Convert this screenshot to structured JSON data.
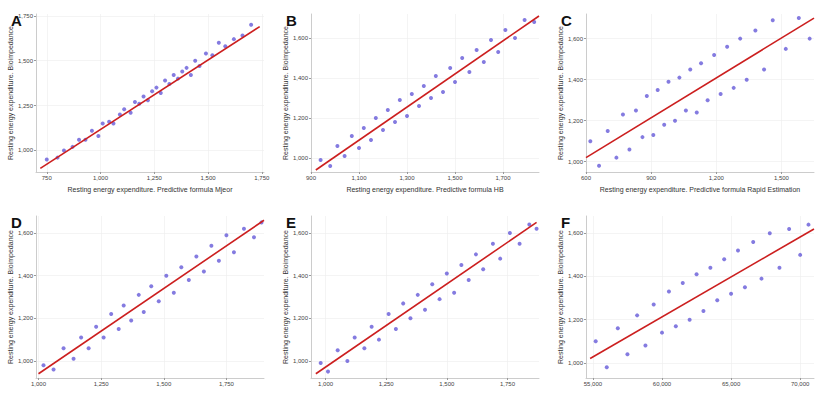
{
  "chart_data": [
    {
      "type": "scatter",
      "title": "A",
      "x_label": "Resting energy expenditure. Predictive formula Mjeor",
      "y_label": "Resting energy expenditure. Bioimpedance",
      "xlim": [
        700,
        1760
      ],
      "xticks": [
        750,
        1000,
        1250,
        1500,
        1750
      ],
      "ylim": [
        880,
        1760
      ],
      "yticks": [
        1000,
        1250,
        1500,
        1750
      ],
      "grid": true,
      "series": [
        {
          "type": "scatter",
          "color": "#5b4fd6",
          "x": [
            750,
            800,
            830,
            870,
            900,
            930,
            960,
            990,
            1010,
            1040,
            1060,
            1090,
            1110,
            1140,
            1160,
            1180,
            1200,
            1220,
            1240,
            1260,
            1280,
            1300,
            1320,
            1340,
            1360,
            1380,
            1400,
            1420,
            1440,
            1460,
            1490,
            1520,
            1550,
            1580,
            1620,
            1660,
            1700
          ],
          "values": [
            950,
            960,
            1000,
            1020,
            1060,
            1060,
            1110,
            1080,
            1150,
            1160,
            1150,
            1200,
            1230,
            1210,
            1270,
            1260,
            1300,
            1280,
            1330,
            1350,
            1320,
            1390,
            1370,
            1420,
            1400,
            1440,
            1460,
            1420,
            1500,
            1470,
            1540,
            1530,
            1600,
            1580,
            1620,
            1640,
            1700
          ]
        },
        {
          "type": "line",
          "color": "#cc1f1f",
          "x": [
            720,
            1740
          ],
          "values": [
            900,
            1690
          ]
        }
      ]
    },
    {
      "type": "scatter",
      "title": "B",
      "x_label": "Resting energy expenditure. Predictive formula HB",
      "y_label": "Resting energy expenditure. Bioimpedance",
      "xlim": [
        900,
        1850
      ],
      "xticks": [
        900,
        1100,
        1300,
        1500,
        1700
      ],
      "ylim": [
        930,
        1720
      ],
      "yticks": [
        1000,
        1200,
        1400,
        1600
      ],
      "grid": true,
      "series": [
        {
          "type": "scatter",
          "color": "#5b4fd6",
          "x": [
            940,
            980,
            1010,
            1040,
            1070,
            1100,
            1120,
            1150,
            1170,
            1200,
            1220,
            1250,
            1270,
            1300,
            1320,
            1350,
            1370,
            1400,
            1420,
            1450,
            1480,
            1500,
            1530,
            1560,
            1590,
            1620,
            1650,
            1680,
            1710,
            1750,
            1790,
            1830
          ],
          "values": [
            990,
            960,
            1060,
            1010,
            1110,
            1050,
            1150,
            1090,
            1200,
            1140,
            1240,
            1180,
            1290,
            1210,
            1320,
            1260,
            1360,
            1300,
            1410,
            1330,
            1450,
            1380,
            1500,
            1430,
            1540,
            1480,
            1590,
            1530,
            1640,
            1600,
            1690,
            1680
          ]
        },
        {
          "type": "line",
          "color": "#cc1f1f",
          "x": [
            920,
            1850
          ],
          "values": [
            940,
            1710
          ]
        }
      ]
    },
    {
      "type": "scatter",
      "title": "C",
      "x_label": "Resting energy expenditure. Predictive formula Rapid Estimation",
      "y_label": "Resting energy expenditure. Bioimpedance",
      "xlim": [
        600,
        1650
      ],
      "xticks": [
        600,
        900,
        1200,
        1500
      ],
      "ylim": [
        950,
        1720
      ],
      "yticks": [
        1000,
        1200,
        1400,
        1600
      ],
      "grid": true,
      "series": [
        {
          "type": "scatter",
          "color": "#5b4fd6",
          "x": [
            620,
            660,
            700,
            740,
            770,
            800,
            830,
            860,
            880,
            910,
            930,
            960,
            980,
            1010,
            1030,
            1060,
            1080,
            1110,
            1130,
            1160,
            1190,
            1220,
            1250,
            1280,
            1310,
            1340,
            1380,
            1420,
            1460,
            1520,
            1580,
            1630
          ],
          "values": [
            1100,
            980,
            1150,
            1020,
            1230,
            1060,
            1250,
            1120,
            1320,
            1130,
            1350,
            1180,
            1390,
            1200,
            1410,
            1250,
            1450,
            1240,
            1480,
            1300,
            1520,
            1330,
            1560,
            1360,
            1600,
            1400,
            1640,
            1450,
            1690,
            1550,
            1700,
            1600
          ]
        },
        {
          "type": "line",
          "color": "#cc1f1f",
          "x": [
            600,
            1650
          ],
          "values": [
            1020,
            1700
          ]
        }
      ]
    },
    {
      "type": "scatter",
      "title": "D",
      "y_label": "Resting energy expenditure. Bioimpedance",
      "xlim": [
        990,
        1900
      ],
      "xticks": [
        1000,
        1250,
        1500,
        1750
      ],
      "ylim": [
        920,
        1680
      ],
      "yticks": [
        1000,
        1200,
        1400,
        1600
      ],
      "grid": true,
      "series": [
        {
          "type": "scatter",
          "color": "#5b4fd6",
          "x": [
            1020,
            1060,
            1100,
            1140,
            1170,
            1200,
            1230,
            1260,
            1290,
            1320,
            1340,
            1370,
            1400,
            1420,
            1450,
            1480,
            1510,
            1540,
            1570,
            1600,
            1630,
            1660,
            1690,
            1720,
            1750,
            1780,
            1820,
            1860,
            1890
          ],
          "values": [
            980,
            960,
            1060,
            1010,
            1110,
            1060,
            1160,
            1110,
            1220,
            1150,
            1260,
            1190,
            1310,
            1230,
            1350,
            1280,
            1400,
            1320,
            1440,
            1380,
            1490,
            1420,
            1540,
            1470,
            1590,
            1510,
            1620,
            1580,
            1650
          ]
        },
        {
          "type": "line",
          "color": "#cc1f1f",
          "x": [
            1000,
            1900
          ],
          "values": [
            940,
            1660
          ]
        }
      ]
    },
    {
      "type": "scatter",
      "title": "E",
      "y_label": "Resting energy expenditure. Bioimpedance",
      "xlim": [
        940,
        1880
      ],
      "xticks": [
        1000,
        1250,
        1500,
        1750
      ],
      "ylim": [
        920,
        1680
      ],
      "yticks": [
        1000,
        1200,
        1400,
        1600
      ],
      "grid": true,
      "series": [
        {
          "type": "scatter",
          "color": "#5b4fd6",
          "x": [
            980,
            1010,
            1050,
            1090,
            1120,
            1160,
            1190,
            1220,
            1260,
            1290,
            1320,
            1350,
            1380,
            1410,
            1440,
            1470,
            1500,
            1530,
            1560,
            1590,
            1620,
            1650,
            1690,
            1720,
            1760,
            1800,
            1840,
            1870
          ],
          "values": [
            990,
            950,
            1050,
            1000,
            1110,
            1060,
            1160,
            1100,
            1220,
            1150,
            1270,
            1200,
            1310,
            1240,
            1360,
            1290,
            1410,
            1320,
            1450,
            1380,
            1500,
            1430,
            1550,
            1480,
            1600,
            1550,
            1640,
            1620
          ]
        },
        {
          "type": "line",
          "color": "#cc1f1f",
          "x": [
            960,
            1870
          ],
          "values": [
            940,
            1650
          ]
        }
      ]
    },
    {
      "type": "scatter",
      "title": "F",
      "y_label": "Resting energy expenditure. Bioimpedance",
      "xlim": [
        54500,
        71000
      ],
      "xticks": [
        55000,
        60000,
        65000,
        70000
      ],
      "ylim": [
        930,
        1680
      ],
      "yticks": [
        1000,
        1200,
        1400,
        1600
      ],
      "grid": true,
      "series": [
        {
          "type": "scatter",
          "color": "#5b4fd6",
          "x": [
            55200,
            56000,
            56800,
            57500,
            58200,
            58800,
            59400,
            60000,
            60500,
            61000,
            61500,
            62000,
            62500,
            63000,
            63500,
            64000,
            64500,
            65000,
            65500,
            66000,
            66600,
            67200,
            67800,
            68500,
            69200,
            70000,
            70600
          ],
          "values": [
            1100,
            980,
            1160,
            1040,
            1220,
            1080,
            1270,
            1140,
            1330,
            1170,
            1370,
            1200,
            1410,
            1240,
            1440,
            1290,
            1480,
            1320,
            1520,
            1350,
            1560,
            1390,
            1600,
            1440,
            1620,
            1500,
            1640
          ]
        },
        {
          "type": "line",
          "color": "#cc1f1f",
          "x": [
            54800,
            71000
          ],
          "values": [
            1020,
            1620
          ]
        }
      ]
    }
  ]
}
